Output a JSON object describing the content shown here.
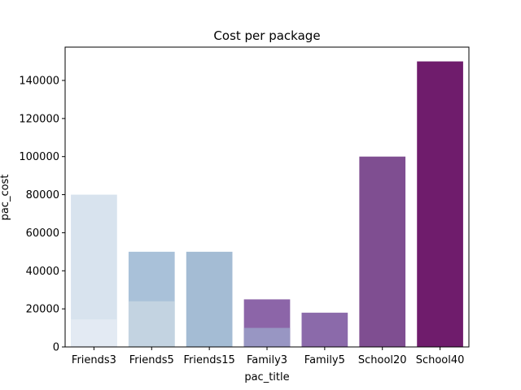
{
  "chart_data": {
    "type": "bar",
    "title": "Cost per package",
    "xlabel": "pac_title",
    "ylabel": "pac_cost",
    "categories": [
      "Friends3",
      "Friends5",
      "Friends15",
      "Family3",
      "Family5",
      "School20",
      "School40"
    ],
    "series": [
      {
        "values": [
          80000,
          50000,
          50000,
          25000,
          18000,
          100000,
          150000
        ]
      },
      {
        "values": [
          14500,
          24000,
          null,
          10000,
          null,
          null,
          null
        ]
      }
    ],
    "ylim": [
      0,
      157500
    ],
    "yticks": [
      0,
      20000,
      40000,
      60000,
      80000,
      100000,
      120000,
      140000
    ],
    "grid": false,
    "colors": {
      "back": [
        "#d8e3ee",
        "#a9c1d9",
        "#a4bcd4",
        "#8c65a8",
        "#8b6aaa",
        "#7f4e91",
        "#6f1c6c"
      ],
      "front": [
        "#e3eaf3",
        "#c3d3e1",
        null,
        "#9896c3",
        null,
        null,
        null
      ]
    }
  }
}
